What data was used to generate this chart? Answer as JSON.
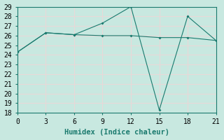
{
  "line1_x": [
    0,
    3,
    6,
    9,
    12,
    15,
    18,
    21
  ],
  "line1_y": [
    24.3,
    26.3,
    26.1,
    26.0,
    26.0,
    25.8,
    25.8,
    25.5
  ],
  "line2_x": [
    0,
    3,
    6,
    9,
    12,
    15,
    18,
    21
  ],
  "line2_y": [
    24.3,
    26.3,
    26.1,
    27.3,
    29.0,
    18.3,
    28.0,
    25.5
  ],
  "line_color": "#1a7a6e",
  "bg_color": "#c8e8e0",
  "grid_color": "#e8d8d8",
  "xlabel": "Humidex (Indice chaleur)",
  "xlim": [
    0,
    21
  ],
  "ylim": [
    18,
    29
  ],
  "xticks": [
    0,
    3,
    6,
    9,
    12,
    15,
    18,
    21
  ],
  "yticks": [
    18,
    19,
    20,
    21,
    22,
    23,
    24,
    25,
    26,
    27,
    28,
    29
  ],
  "xlabel_fontsize": 7.5,
  "tick_fontsize": 7
}
